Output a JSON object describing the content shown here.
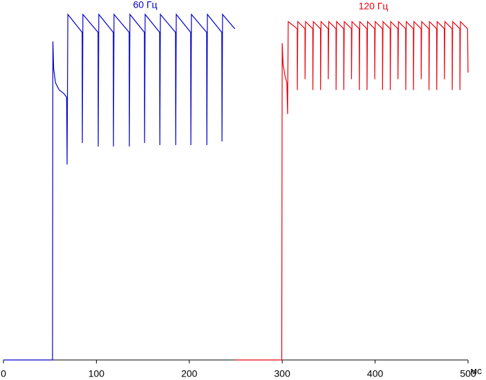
{
  "chart_data": {
    "type": "line",
    "x_label": "мс",
    "xlim": [
      0,
      500
    ],
    "xticks": [
      0,
      100,
      200,
      300,
      400,
      500
    ],
    "ylim": [
      0,
      100
    ],
    "series": [
      {
        "name": "60 Гц",
        "color": "#0000cc",
        "x": [
          0,
          52.8,
          53.2,
          54,
          56,
          60,
          65,
          68,
          68.5,
          69.3,
          84.7,
          84.9,
          85.5,
          101.8,
          102,
          102.6,
          118.2,
          118.4,
          119,
          135.3,
          135.5,
          136.1,
          151.7,
          151.9,
          152.5,
          168.1,
          168.3,
          168.9,
          185.2,
          185.4,
          186,
          201.5,
          201.7,
          202.3,
          218.7,
          218.9,
          219.5,
          235,
          235.2,
          235.8,
          249
        ],
        "values": [
          0,
          0,
          88.5,
          81,
          77,
          75,
          74,
          73,
          54.3,
          96,
          91,
          60.3,
          96,
          91,
          59.3,
          96,
          91,
          59.3,
          96,
          91,
          59.3,
          96,
          91,
          60.3,
          96,
          91,
          59.7,
          96,
          91,
          59.7,
          96,
          91,
          59.7,
          96,
          91,
          59.7,
          96,
          91,
          60.7,
          96,
          92
        ]
      },
      {
        "name": "120 Гц",
        "color": "#e8000b",
        "x": [
          250,
          299.5,
          300,
          301,
          303,
          305,
          305.8,
          306.5,
          316.2,
          316.3,
          316.8,
          324.5,
          324.6,
          325.1,
          332.9,
          333,
          333.5,
          341.2,
          341.3,
          341.8,
          349.5,
          349.6,
          350.1,
          357.9,
          358,
          358.5,
          366.2,
          366.3,
          366.8,
          374.5,
          374.6,
          375.1,
          382.9,
          383,
          383.5,
          391.2,
          391.3,
          391.8,
          399.5,
          399.6,
          400.1,
          407.9,
          408,
          408.5,
          416.2,
          416.3,
          416.8,
          424.5,
          424.6,
          425.1,
          432.9,
          433,
          433.5,
          441.2,
          441.3,
          441.8,
          449.5,
          449.6,
          450.1,
          457.9,
          458,
          458.5,
          466.2,
          466.3,
          466.8,
          474.5,
          474.6,
          475.1,
          482.9,
          483,
          483.5,
          491.2,
          491.3,
          491.8,
          499.5,
          500
        ],
        "values": [
          0,
          0,
          88,
          82,
          79,
          77,
          68.3,
          94,
          92,
          75,
          94,
          92,
          78,
          94,
          92,
          75,
          94,
          92,
          75,
          94,
          92,
          78,
          94,
          92,
          75,
          94,
          92,
          75,
          94,
          92,
          78,
          94,
          92,
          75,
          94,
          92,
          75,
          94,
          92,
          78,
          94,
          92,
          75,
          94,
          92,
          75,
          94,
          92,
          78,
          94,
          92,
          75,
          94,
          92,
          75,
          94,
          92,
          78,
          94,
          92,
          75,
          94,
          92,
          75,
          94,
          92,
          78,
          94,
          92,
          75,
          94,
          92,
          75,
          94,
          92,
          79.8
        ]
      }
    ]
  }
}
